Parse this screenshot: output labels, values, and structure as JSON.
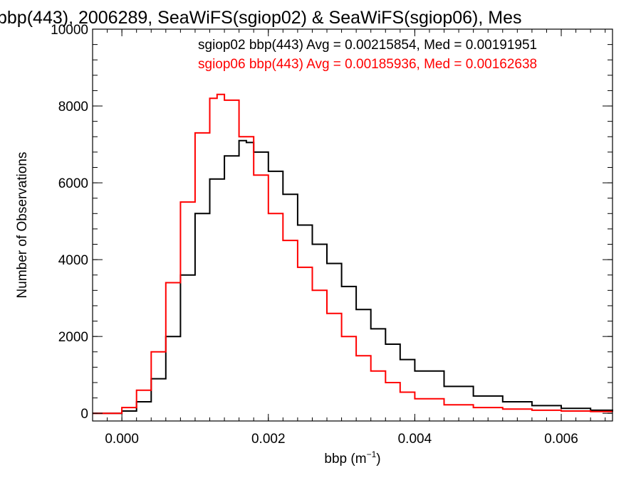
{
  "chart_data": {
    "type": "histogram",
    "title": "bbp(443), 2006289, SeaWiFS(sgiop02) & SeaWiFS(sgiop06), Mes",
    "xlabel_main": "bbp (m",
    "xlabel_sup": "−1",
    "xlabel_close": ")",
    "ylabel": "Number of Observations",
    "xlim": [
      -0.0004,
      0.0067
    ],
    "ylim": [
      -200,
      10000
    ],
    "x_ticks": [
      0.0,
      0.002,
      0.004,
      0.006
    ],
    "x_tick_labels": [
      "0.000",
      "0.002",
      "0.004",
      "0.006"
    ],
    "x_minor_step": 0.0002,
    "y_ticks": [
      0,
      2000,
      4000,
      6000,
      8000,
      10000
    ],
    "y_tick_labels": [
      "0",
      "2000",
      "4000",
      "6000",
      "8000",
      "10000"
    ],
    "y_minor_step": 400,
    "grid": false,
    "legend_position": "top-right",
    "series": [
      {
        "name": "sgiop02",
        "legend_label": "sgiop02 bbp(443) Avg = 0.00215854, Med = 0.00191951",
        "color": "#000000",
        "x": [
          -0.0004,
          -0.0001,
          0.0,
          0.0002,
          0.0004,
          0.0006,
          0.0008,
          0.001,
          0.0012,
          0.0014,
          0.0016,
          0.0017,
          0.0018,
          0.002,
          0.0022,
          0.0024,
          0.0026,
          0.0028,
          0.003,
          0.0032,
          0.0034,
          0.0036,
          0.0038,
          0.004,
          0.0044,
          0.0048,
          0.0052,
          0.0056,
          0.006,
          0.0064,
          0.0067
        ],
        "y": [
          0,
          0,
          60,
          300,
          900,
          2000,
          3600,
          5200,
          6100,
          6700,
          7100,
          7050,
          6800,
          6300,
          5700,
          4900,
          4400,
          3900,
          3300,
          2700,
          2200,
          1800,
          1400,
          1100,
          700,
          450,
          300,
          200,
          130,
          80,
          60
        ]
      },
      {
        "name": "sgiop06",
        "legend_label": "sgiop06 bbp(443) Avg = 0.00185936, Med = 0.00162638",
        "color": "#ff0000",
        "x": [
          -0.0004,
          -0.0001,
          0.0,
          0.0002,
          0.0004,
          0.0006,
          0.0008,
          0.001,
          0.0012,
          0.0013,
          0.0014,
          0.0016,
          0.0018,
          0.002,
          0.0022,
          0.0024,
          0.0026,
          0.0028,
          0.003,
          0.0032,
          0.0034,
          0.0036,
          0.0038,
          0.004,
          0.0044,
          0.0048,
          0.0052,
          0.0056,
          0.006,
          0.0064,
          0.0067
        ],
        "y": [
          0,
          0,
          150,
          600,
          1600,
          3400,
          5500,
          7300,
          8200,
          8300,
          8150,
          7200,
          6200,
          5200,
          4500,
          3800,
          3200,
          2600,
          2000,
          1500,
          1100,
          800,
          550,
          380,
          220,
          150,
          110,
          80,
          60,
          45,
          40
        ]
      }
    ]
  }
}
